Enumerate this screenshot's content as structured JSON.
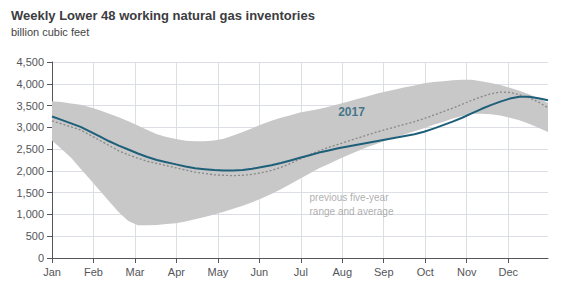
{
  "chart_data": {
    "type": "line",
    "title": "Weekly Lower 48 working natural gas inventories",
    "subtitle": "billion cubic feet",
    "x": [
      0,
      1,
      2,
      3,
      4,
      5,
      6,
      7,
      8,
      9,
      10,
      11,
      12,
      13,
      14,
      15,
      16,
      17,
      18,
      19,
      20,
      21,
      22,
      23,
      24,
      25,
      26,
      27,
      28,
      29,
      30,
      31,
      32,
      33,
      34,
      35,
      36,
      37,
      38,
      39,
      40,
      41,
      42,
      43,
      44,
      45,
      46,
      47,
      48,
      49,
      50,
      51,
      52
    ],
    "xlim": [
      0,
      52
    ],
    "xticks": [
      {
        "value": 0,
        "label": "Jan"
      },
      {
        "value": 4.35,
        "label": "Feb"
      },
      {
        "value": 8.7,
        "label": "Mar"
      },
      {
        "value": 13.04,
        "label": "Apr"
      },
      {
        "value": 17.39,
        "label": "May"
      },
      {
        "value": 21.74,
        "label": "Jun"
      },
      {
        "value": 26.09,
        "label": "Jul"
      },
      {
        "value": 30.43,
        "label": "Aug"
      },
      {
        "value": 34.78,
        "label": "Sep"
      },
      {
        "value": 39.13,
        "label": "Oct"
      },
      {
        "value": 43.48,
        "label": "Nov"
      },
      {
        "value": 47.83,
        "label": "Dec"
      }
    ],
    "ylim": [
      0,
      4500
    ],
    "yticks": [
      0,
      500,
      {
        "value": 1000,
        "label": "1,000"
      },
      {
        "value": 1500,
        "label": "1,500"
      },
      {
        "value": 2000,
        "label": "2,000"
      },
      {
        "value": 2500,
        "label": "2,500"
      },
      {
        "value": 3000,
        "label": "3,000"
      },
      {
        "value": 3500,
        "label": "3,500"
      },
      {
        "value": 4000,
        "label": "4,000"
      },
      {
        "value": 4500,
        "label": "4,500"
      }
    ],
    "grid": true,
    "series": [
      {
        "type": "band",
        "color": "#c8c8c8",
        "low": [
          2700,
          2500,
          2300,
          2050,
          1800,
          1550,
          1300,
          1050,
          850,
          750,
          750,
          760,
          780,
          800,
          840,
          890,
          940,
          1000,
          1060,
          1130,
          1200,
          1280,
          1370,
          1470,
          1580,
          1700,
          1820,
          1940,
          2060,
          2160,
          2260,
          2360,
          2450,
          2540,
          2620,
          2700,
          2770,
          2840,
          2910,
          2980,
          3060,
          3120,
          3200,
          3260,
          3310,
          3310,
          3300,
          3270,
          3220,
          3160,
          3080,
          2990,
          2890
        ],
        "high": [
          3600,
          3580,
          3550,
          3520,
          3460,
          3390,
          3310,
          3230,
          3140,
          3040,
          2940,
          2840,
          2780,
          2730,
          2690,
          2680,
          2680,
          2700,
          2740,
          2810,
          2890,
          2980,
          3070,
          3150,
          3220,
          3280,
          3340,
          3380,
          3420,
          3470,
          3530,
          3590,
          3650,
          3710,
          3770,
          3820,
          3870,
          3920,
          3960,
          4010,
          4040,
          4060,
          4080,
          4090,
          4090,
          4060,
          4020,
          3970,
          3910,
          3840,
          3760,
          3670,
          3560
        ]
      },
      {
        "type": "line",
        "color": "#888888",
        "line_style": "dotted",
        "values": [
          3150,
          3080,
          3010,
          2940,
          2820,
          2700,
          2580,
          2460,
          2370,
          2290,
          2220,
          2170,
          2120,
          2070,
          2020,
          1970,
          1940,
          1910,
          1900,
          1890,
          1900,
          1920,
          1960,
          2010,
          2080,
          2170,
          2270,
          2370,
          2460,
          2540,
          2610,
          2680,
          2750,
          2820,
          2890,
          2950,
          3010,
          3070,
          3130,
          3200,
          3280,
          3360,
          3440,
          3530,
          3620,
          3700,
          3770,
          3810,
          3800,
          3750,
          3680,
          3580,
          3450
        ]
      },
      {
        "type": "line",
        "color": "#1e5f7a",
        "line_style": "solid",
        "values": [
          3250,
          3170,
          3090,
          3010,
          2900,
          2790,
          2680,
          2580,
          2490,
          2400,
          2320,
          2250,
          2200,
          2150,
          2100,
          2060,
          2040,
          2020,
          2010,
          2010,
          2020,
          2050,
          2090,
          2130,
          2180,
          2240,
          2300,
          2360,
          2420,
          2470,
          2520,
          2560,
          2600,
          2640,
          2680,
          2720,
          2760,
          2800,
          2840,
          2900,
          2970,
          3050,
          3130,
          3220,
          3320,
          3420,
          3510,
          3590,
          3660,
          3700,
          3700,
          3670,
          3620
        ]
      }
    ],
    "annotations": [
      {
        "text": "2017",
        "x": 30,
        "y": 3200,
        "color": "#1e5f7a"
      },
      {
        "text": "previous five-year\nrange and average",
        "x": 27,
        "y": 1550,
        "color": "#999999"
      }
    ]
  }
}
